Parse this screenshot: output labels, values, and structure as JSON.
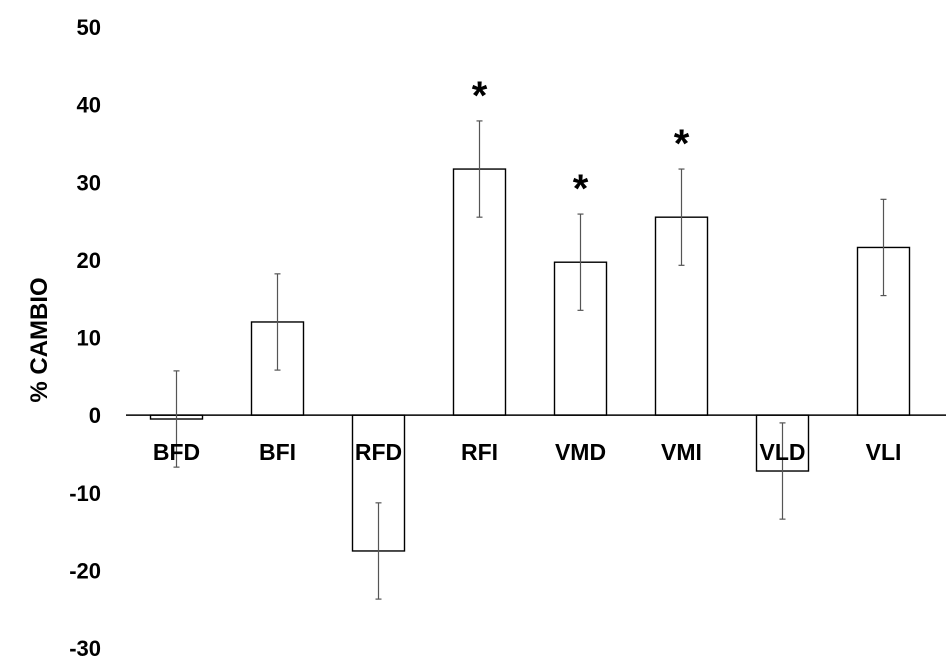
{
  "chart_data": {
    "type": "bar",
    "title": "",
    "xlabel": "",
    "ylabel": "% CAMBIO",
    "ylim": [
      -30,
      50
    ],
    "yticks": [
      50,
      40,
      30,
      20,
      10,
      0,
      -10,
      -20,
      -30
    ],
    "grid": false,
    "categories": [
      "BFD",
      "BFI",
      "RFD",
      "RFI",
      "VMD",
      "VMI",
      "VLD",
      "VLI"
    ],
    "values": [
      -0.5,
      12,
      -17.5,
      31.7,
      19.7,
      25.5,
      -7.2,
      21.6
    ],
    "errors": [
      6.2,
      6.2,
      6.2,
      6.2,
      6.2,
      6.2,
      6.2,
      6.2
    ],
    "significance": [
      "",
      "",
      "",
      "*",
      "*",
      "*",
      "",
      ""
    ]
  },
  "colors": {
    "bar_fill": "#ffffff",
    "bar_stroke": "#000000",
    "error_bar": "#555555"
  }
}
